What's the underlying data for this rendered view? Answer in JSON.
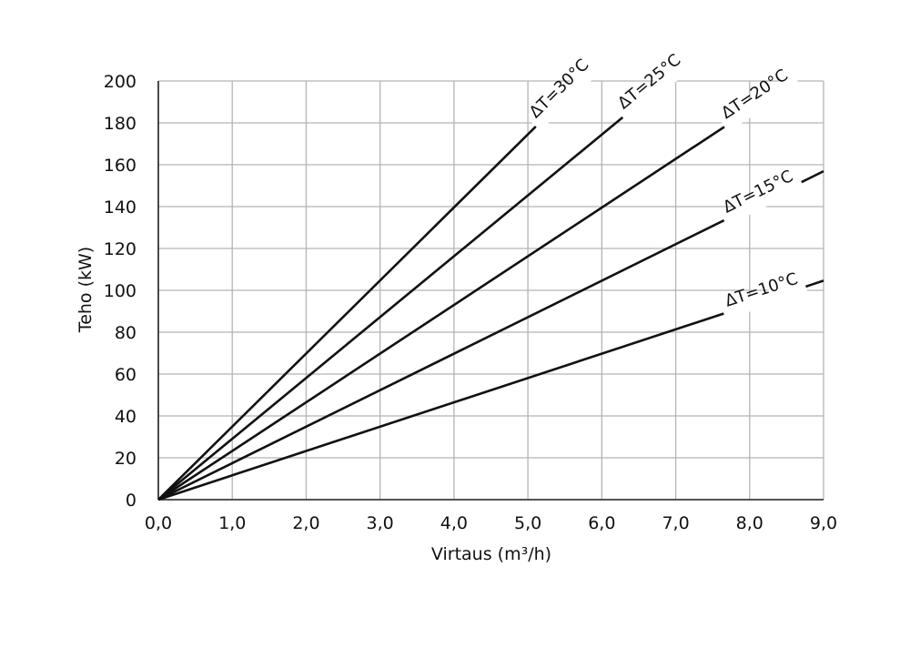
{
  "chart_data": {
    "type": "line",
    "xlabel": "Virtaus (m³/h)",
    "ylabel": "Teho (kW)",
    "xlim": [
      0,
      9
    ],
    "ylim": [
      0,
      200
    ],
    "x_ticks": [
      0,
      1,
      2,
      3,
      4,
      5,
      6,
      7,
      8,
      9
    ],
    "x_tick_labels": [
      "0,0",
      "1,0",
      "2,0",
      "3,0",
      "4,0",
      "5,0",
      "6,0",
      "7,0",
      "8,0",
      "9,0"
    ],
    "y_ticks": [
      0,
      20,
      40,
      60,
      80,
      100,
      120,
      140,
      160,
      180,
      200
    ],
    "y_tick_labels": [
      "0",
      "20",
      "40",
      "60",
      "80",
      "100",
      "120",
      "140",
      "160",
      "180",
      "200"
    ],
    "grid": true,
    "legend": "inline labels",
    "line_color": "#111111",
    "grid_color": "#b4b4b4",
    "series": [
      {
        "name": "ΔT=10°C",
        "x": [
          0,
          9
        ],
        "y": [
          0,
          104.6
        ],
        "label_x": 7.72
      },
      {
        "name": "ΔT=15°C",
        "x": [
          0,
          9
        ],
        "y": [
          0,
          156.9
        ],
        "label_x": 7.72
      },
      {
        "name": "ΔT=20°C",
        "x": [
          0,
          8.6
        ],
        "y": [
          0,
          200
        ],
        "label_x": 7.72
      },
      {
        "name": "ΔT=25°C",
        "x": [
          0,
          6.88
        ],
        "y": [
          0,
          200
        ],
        "label_x": 6.34
      },
      {
        "name": "ΔT=30°C",
        "x": [
          0,
          5.73
        ],
        "y": [
          0,
          200
        ],
        "label_x": 5.16
      }
    ]
  }
}
